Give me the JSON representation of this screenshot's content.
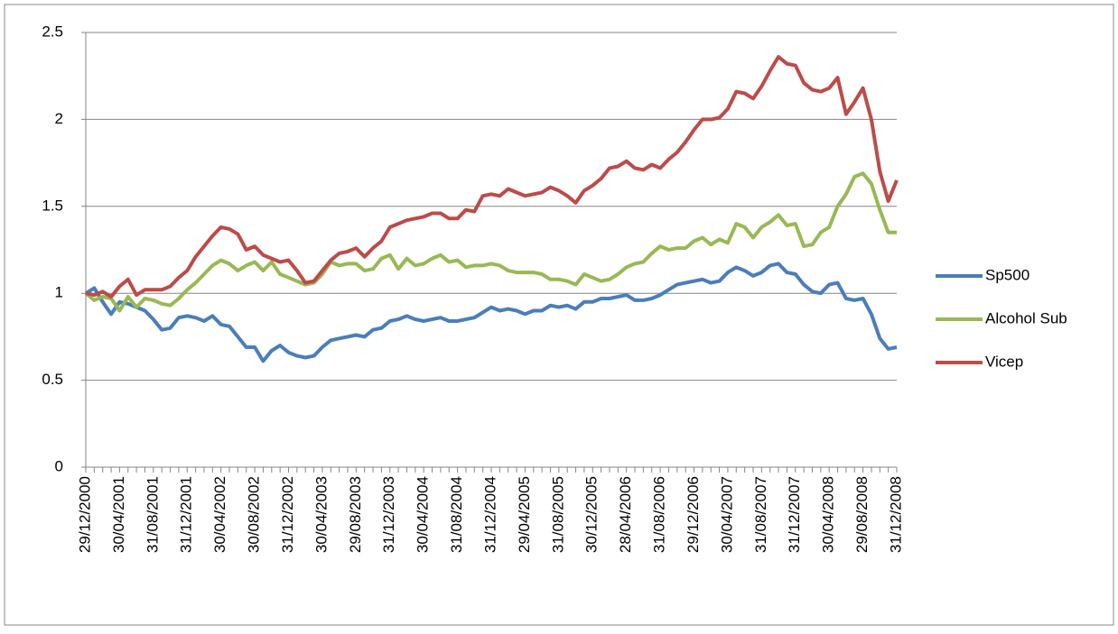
{
  "chart_data": {
    "type": "line",
    "categories": [
      "29/12/2000",
      null,
      null,
      null,
      "30/04/2001",
      null,
      null,
      null,
      "31/08/2001",
      null,
      null,
      null,
      "31/12/2001",
      null,
      null,
      null,
      "30/04/2002",
      null,
      null,
      null,
      "30/08/2002",
      null,
      null,
      null,
      "31/12/2002",
      null,
      null,
      null,
      "30/04/2003",
      null,
      null,
      null,
      "29/08/2003",
      null,
      null,
      null,
      "31/12/2003",
      null,
      null,
      null,
      "30/04/2004",
      null,
      null,
      null,
      "31/08/2004",
      null,
      null,
      null,
      "31/12/2004",
      null,
      null,
      null,
      "29/04/2005",
      null,
      null,
      null,
      "31/08/2005",
      null,
      null,
      null,
      "30/12/2005",
      null,
      null,
      null,
      "28/04/2006",
      null,
      null,
      null,
      "31/08/2006",
      null,
      null,
      null,
      "29/12/2006",
      null,
      null,
      null,
      "30/04/2007",
      null,
      null,
      null,
      "31/08/2007",
      null,
      null,
      null,
      "31/12/2007",
      null,
      null,
      null,
      "30/04/2008",
      null,
      null,
      null,
      "29/08/2008",
      null,
      null,
      null,
      "31/12/2008"
    ],
    "series": [
      {
        "name": "Sp500",
        "color": "#4a7ebb",
        "values": [
          1.0,
          1.03,
          0.95,
          0.88,
          0.95,
          0.94,
          0.92,
          0.9,
          0.85,
          0.79,
          0.8,
          0.86,
          0.87,
          0.86,
          0.84,
          0.87,
          0.82,
          0.81,
          0.75,
          0.69,
          0.69,
          0.61,
          0.67,
          0.7,
          0.66,
          0.64,
          0.63,
          0.64,
          0.69,
          0.73,
          0.74,
          0.75,
          0.76,
          0.75,
          0.79,
          0.8,
          0.84,
          0.85,
          0.87,
          0.85,
          0.84,
          0.85,
          0.86,
          0.84,
          0.84,
          0.85,
          0.86,
          0.89,
          0.92,
          0.9,
          0.91,
          0.9,
          0.88,
          0.9,
          0.9,
          0.93,
          0.92,
          0.93,
          0.91,
          0.95,
          0.95,
          0.97,
          0.97,
          0.98,
          0.99,
          0.96,
          0.96,
          0.97,
          0.99,
          1.02,
          1.05,
          1.06,
          1.07,
          1.08,
          1.06,
          1.07,
          1.12,
          1.15,
          1.13,
          1.1,
          1.12,
          1.16,
          1.17,
          1.12,
          1.11,
          1.05,
          1.01,
          1.0,
          1.05,
          1.06,
          0.97,
          0.96,
          0.97,
          0.88,
          0.74,
          0.68,
          0.69
        ]
      },
      {
        "name": "Alcohol Sub",
        "color": "#98b954",
        "values": [
          1.0,
          0.96,
          0.98,
          0.97,
          0.9,
          0.98,
          0.92,
          0.97,
          0.96,
          0.94,
          0.93,
          0.97,
          1.02,
          1.06,
          1.11,
          1.16,
          1.19,
          1.17,
          1.13,
          1.16,
          1.18,
          1.13,
          1.18,
          1.11,
          1.09,
          1.07,
          1.05,
          1.06,
          1.11,
          1.18,
          1.16,
          1.17,
          1.17,
          1.13,
          1.14,
          1.2,
          1.22,
          1.14,
          1.2,
          1.16,
          1.17,
          1.2,
          1.22,
          1.18,
          1.19,
          1.15,
          1.16,
          1.16,
          1.17,
          1.16,
          1.13,
          1.12,
          1.12,
          1.12,
          1.11,
          1.08,
          1.08,
          1.07,
          1.05,
          1.11,
          1.09,
          1.07,
          1.08,
          1.11,
          1.15,
          1.17,
          1.18,
          1.23,
          1.27,
          1.25,
          1.26,
          1.26,
          1.3,
          1.32,
          1.28,
          1.31,
          1.29,
          1.4,
          1.38,
          1.32,
          1.38,
          1.41,
          1.45,
          1.39,
          1.4,
          1.27,
          1.28,
          1.35,
          1.38,
          1.5,
          1.57,
          1.67,
          1.69,
          1.63,
          1.48,
          1.35,
          1.35
        ]
      },
      {
        "name": "Vicep",
        "color": "#be4b48",
        "values": [
          1.0,
          0.99,
          1.01,
          0.98,
          1.04,
          1.08,
          0.99,
          1.02,
          1.02,
          1.02,
          1.04,
          1.09,
          1.13,
          1.21,
          1.27,
          1.33,
          1.38,
          1.37,
          1.34,
          1.25,
          1.27,
          1.22,
          1.2,
          1.18,
          1.19,
          1.13,
          1.06,
          1.07,
          1.13,
          1.19,
          1.23,
          1.24,
          1.26,
          1.21,
          1.26,
          1.3,
          1.38,
          1.4,
          1.42,
          1.43,
          1.44,
          1.46,
          1.46,
          1.43,
          1.43,
          1.48,
          1.47,
          1.56,
          1.57,
          1.56,
          1.6,
          1.58,
          1.56,
          1.57,
          1.58,
          1.61,
          1.59,
          1.56,
          1.52,
          1.59,
          1.62,
          1.66,
          1.72,
          1.73,
          1.76,
          1.72,
          1.71,
          1.74,
          1.72,
          1.77,
          1.81,
          1.87,
          1.94,
          2.0,
          2.0,
          2.01,
          2.06,
          2.16,
          2.15,
          2.12,
          2.19,
          2.28,
          2.36,
          2.32,
          2.31,
          2.21,
          2.17,
          2.16,
          2.18,
          2.24,
          2.03,
          2.1,
          2.18,
          2.0,
          1.7,
          1.53,
          1.65
        ]
      }
    ],
    "ylim": [
      0,
      2.5
    ],
    "yticks": [
      0,
      0.5,
      1,
      1.5,
      2,
      2.5
    ],
    "grid": true,
    "legend": "right"
  }
}
